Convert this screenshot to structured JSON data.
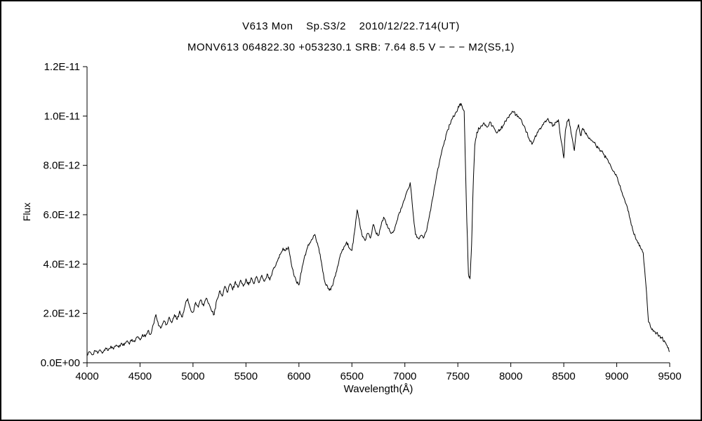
{
  "chart": {
    "title_line1": "V613 Mon    Sp.S3/2    2010/12/22.714(UT)",
    "title_line2": "MONV613 064822.30 +053230.1 SRB: 7.64 8.5 V − − − M2(S5,1)",
    "xlabel": "Wavelength(Å)",
    "ylabel": "Flux"
  },
  "chart_data": {
    "type": "line",
    "title": "V613 Mon Sp.S3/2 2010/12/22.714(UT)",
    "subtitle": "MONV613 064822.30 +053230.1 SRB: 7.64 8.5 V − − − M2(S5,1)",
    "xlabel": "Wavelength(Å)",
    "ylabel": "Flux",
    "xlim": [
      4000,
      9500
    ],
    "ylim": [
      0,
      1.2e-11
    ],
    "grid": false,
    "legend": null,
    "line_color": "#000000",
    "background_color": "#ffffff",
    "flux_scale_exp": -12,
    "noise_amplitude": 0.07,
    "x_ticks": [
      4000,
      4500,
      5000,
      5500,
      6000,
      6500,
      7000,
      7500,
      8000,
      8500,
      9000,
      9500
    ],
    "y_ticks": [
      [
        0,
        "0.0E+00"
      ],
      [
        2,
        "2.0E-12"
      ],
      [
        4,
        "4.0E-12"
      ],
      [
        6,
        "6.0E-12"
      ],
      [
        8,
        "8.0E-12"
      ],
      [
        10,
        "1.0E-11"
      ],
      [
        12,
        "1.2E-11"
      ]
    ],
    "points_unit": "flux values in units of 1e-12",
    "points": [
      [
        4000,
        0.3
      ],
      [
        4025,
        0.45
      ],
      [
        4050,
        0.32
      ],
      [
        4075,
        0.5
      ],
      [
        4100,
        0.38
      ],
      [
        4125,
        0.52
      ],
      [
        4150,
        0.42
      ],
      [
        4175,
        0.6
      ],
      [
        4200,
        0.5
      ],
      [
        4225,
        0.68
      ],
      [
        4250,
        0.55
      ],
      [
        4275,
        0.72
      ],
      [
        4300,
        0.62
      ],
      [
        4325,
        0.8
      ],
      [
        4350,
        0.7
      ],
      [
        4375,
        0.88
      ],
      [
        4400,
        0.75
      ],
      [
        4425,
        0.95
      ],
      [
        4450,
        0.85
      ],
      [
        4475,
        1.05
      ],
      [
        4500,
        0.92
      ],
      [
        4525,
        1.15
      ],
      [
        4550,
        1.05
      ],
      [
        4575,
        1.3
      ],
      [
        4600,
        1.15
      ],
      [
        4625,
        1.55
      ],
      [
        4650,
        1.95
      ],
      [
        4675,
        1.5
      ],
      [
        4700,
        1.42
      ],
      [
        4725,
        1.7
      ],
      [
        4750,
        1.55
      ],
      [
        4775,
        1.85
      ],
      [
        4800,
        1.62
      ],
      [
        4825,
        1.95
      ],
      [
        4850,
        1.75
      ],
      [
        4875,
        2.1
      ],
      [
        4900,
        1.85
      ],
      [
        4925,
        2.3
      ],
      [
        4950,
        2.6
      ],
      [
        4975,
        2.2
      ],
      [
        5000,
        2.05
      ],
      [
        5025,
        2.45
      ],
      [
        5050,
        2.25
      ],
      [
        5075,
        2.55
      ],
      [
        5100,
        2.3
      ],
      [
        5125,
        2.62
      ],
      [
        5150,
        2.4
      ],
      [
        5175,
        2.1
      ],
      [
        5200,
        1.95
      ],
      [
        5225,
        2.55
      ],
      [
        5250,
        2.9
      ],
      [
        5275,
        2.7
      ],
      [
        5300,
        3.1
      ],
      [
        5325,
        2.85
      ],
      [
        5350,
        3.2
      ],
      [
        5375,
        2.95
      ],
      [
        5400,
        3.3
      ],
      [
        5425,
        3.05
      ],
      [
        5450,
        3.35
      ],
      [
        5475,
        3.1
      ],
      [
        5500,
        3.4
      ],
      [
        5525,
        3.15
      ],
      [
        5550,
        3.45
      ],
      [
        5575,
        3.2
      ],
      [
        5600,
        3.5
      ],
      [
        5625,
        3.25
      ],
      [
        5650,
        3.55
      ],
      [
        5675,
        3.3
      ],
      [
        5700,
        3.6
      ],
      [
        5725,
        3.35
      ],
      [
        5750,
        3.7
      ],
      [
        5775,
        3.9
      ],
      [
        5800,
        4.15
      ],
      [
        5825,
        4.4
      ],
      [
        5850,
        4.65
      ],
      [
        5875,
        4.55
      ],
      [
        5900,
        4.7
      ],
      [
        5925,
        4.1
      ],
      [
        5950,
        3.6
      ],
      [
        5975,
        3.3
      ],
      [
        6000,
        3.15
      ],
      [
        6025,
        3.7
      ],
      [
        6050,
        4.25
      ],
      [
        6075,
        4.6
      ],
      [
        6100,
        4.85
      ],
      [
        6125,
        5.0
      ],
      [
        6150,
        5.2
      ],
      [
        6175,
        4.85
      ],
      [
        6200,
        4.4
      ],
      [
        6225,
        3.7
      ],
      [
        6250,
        3.2
      ],
      [
        6275,
        3.0
      ],
      [
        6300,
        2.95
      ],
      [
        6325,
        3.25
      ],
      [
        6350,
        3.65
      ],
      [
        6375,
        4.05
      ],
      [
        6400,
        4.45
      ],
      [
        6425,
        4.7
      ],
      [
        6450,
        4.9
      ],
      [
        6475,
        4.65
      ],
      [
        6500,
        4.55
      ],
      [
        6525,
        5.3
      ],
      [
        6550,
        6.2
      ],
      [
        6575,
        5.6
      ],
      [
        6600,
        5.1
      ],
      [
        6625,
        4.95
      ],
      [
        6650,
        5.25
      ],
      [
        6675,
        5.05
      ],
      [
        6700,
        5.6
      ],
      [
        6725,
        5.3
      ],
      [
        6750,
        5.15
      ],
      [
        6775,
        5.55
      ],
      [
        6800,
        5.9
      ],
      [
        6825,
        5.6
      ],
      [
        6850,
        5.45
      ],
      [
        6875,
        5.25
      ],
      [
        6900,
        5.35
      ],
      [
        6925,
        5.75
      ],
      [
        6950,
        6.1
      ],
      [
        6975,
        6.35
      ],
      [
        7000,
        6.65
      ],
      [
        7025,
        7.0
      ],
      [
        7050,
        7.3
      ],
      [
        7075,
        6.2
      ],
      [
        7100,
        5.2
      ],
      [
        7125,
        5.05
      ],
      [
        7150,
        5.15
      ],
      [
        7175,
        5.05
      ],
      [
        7200,
        5.3
      ],
      [
        7225,
        5.8
      ],
      [
        7250,
        6.4
      ],
      [
        7275,
        7.0
      ],
      [
        7300,
        7.6
      ],
      [
        7325,
        8.1
      ],
      [
        7350,
        8.6
      ],
      [
        7375,
        9.0
      ],
      [
        7400,
        9.4
      ],
      [
        7425,
        9.65
      ],
      [
        7450,
        9.9
      ],
      [
        7475,
        10.1
      ],
      [
        7500,
        10.3
      ],
      [
        7520,
        10.5
      ],
      [
        7540,
        10.4
      ],
      [
        7560,
        10.2
      ],
      [
        7580,
        6.5
      ],
      [
        7600,
        3.6
      ],
      [
        7615,
        3.4
      ],
      [
        7630,
        4.8
      ],
      [
        7645,
        7.2
      ],
      [
        7660,
        8.8
      ],
      [
        7680,
        9.35
      ],
      [
        7700,
        9.5
      ],
      [
        7725,
        9.6
      ],
      [
        7750,
        9.7
      ],
      [
        7775,
        9.55
      ],
      [
        7800,
        9.75
      ],
      [
        7825,
        9.6
      ],
      [
        7850,
        9.45
      ],
      [
        7875,
        9.35
      ],
      [
        7900,
        9.45
      ],
      [
        7925,
        9.6
      ],
      [
        7950,
        9.8
      ],
      [
        7975,
        9.95
      ],
      [
        8000,
        10.1
      ],
      [
        8025,
        10.15
      ],
      [
        8050,
        10.05
      ],
      [
        8075,
        9.95
      ],
      [
        8100,
        9.85
      ],
      [
        8125,
        9.6
      ],
      [
        8150,
        9.35
      ],
      [
        8175,
        9.05
      ],
      [
        8200,
        8.85
      ],
      [
        8225,
        9.1
      ],
      [
        8250,
        9.35
      ],
      [
        8275,
        9.5
      ],
      [
        8300,
        9.65
      ],
      [
        8325,
        9.8
      ],
      [
        8350,
        9.9
      ],
      [
        8375,
        9.75
      ],
      [
        8400,
        9.6
      ],
      [
        8425,
        9.75
      ],
      [
        8450,
        9.85
      ],
      [
        8475,
        9.0
      ],
      [
        8500,
        8.3
      ],
      [
        8515,
        9.4
      ],
      [
        8530,
        9.75
      ],
      [
        8550,
        9.85
      ],
      [
        8575,
        9.2
      ],
      [
        8600,
        8.6
      ],
      [
        8620,
        9.4
      ],
      [
        8640,
        9.65
      ],
      [
        8660,
        9.2
      ],
      [
        8680,
        9.5
      ],
      [
        8700,
        9.35
      ],
      [
        8725,
        9.2
      ],
      [
        8750,
        9.05
      ],
      [
        8775,
        8.95
      ],
      [
        8800,
        8.85
      ],
      [
        8825,
        8.7
      ],
      [
        8850,
        8.6
      ],
      [
        8875,
        8.45
      ],
      [
        8900,
        8.3
      ],
      [
        8925,
        8.1
      ],
      [
        8950,
        7.9
      ],
      [
        8975,
        7.75
      ],
      [
        9000,
        7.55
      ],
      [
        9025,
        7.2
      ],
      [
        9050,
        6.9
      ],
      [
        9075,
        6.6
      ],
      [
        9100,
        6.3
      ],
      [
        9125,
        5.85
      ],
      [
        9150,
        5.4
      ],
      [
        9175,
        5.1
      ],
      [
        9200,
        4.85
      ],
      [
        9225,
        4.65
      ],
      [
        9250,
        4.45
      ],
      [
        9275,
        3.2
      ],
      [
        9300,
        1.65
      ],
      [
        9325,
        1.4
      ],
      [
        9350,
        1.3
      ],
      [
        9375,
        1.2
      ],
      [
        9400,
        1.1
      ],
      [
        9425,
        1.0
      ],
      [
        9450,
        0.9
      ],
      [
        9475,
        0.7
      ],
      [
        9500,
        0.45
      ]
    ]
  }
}
